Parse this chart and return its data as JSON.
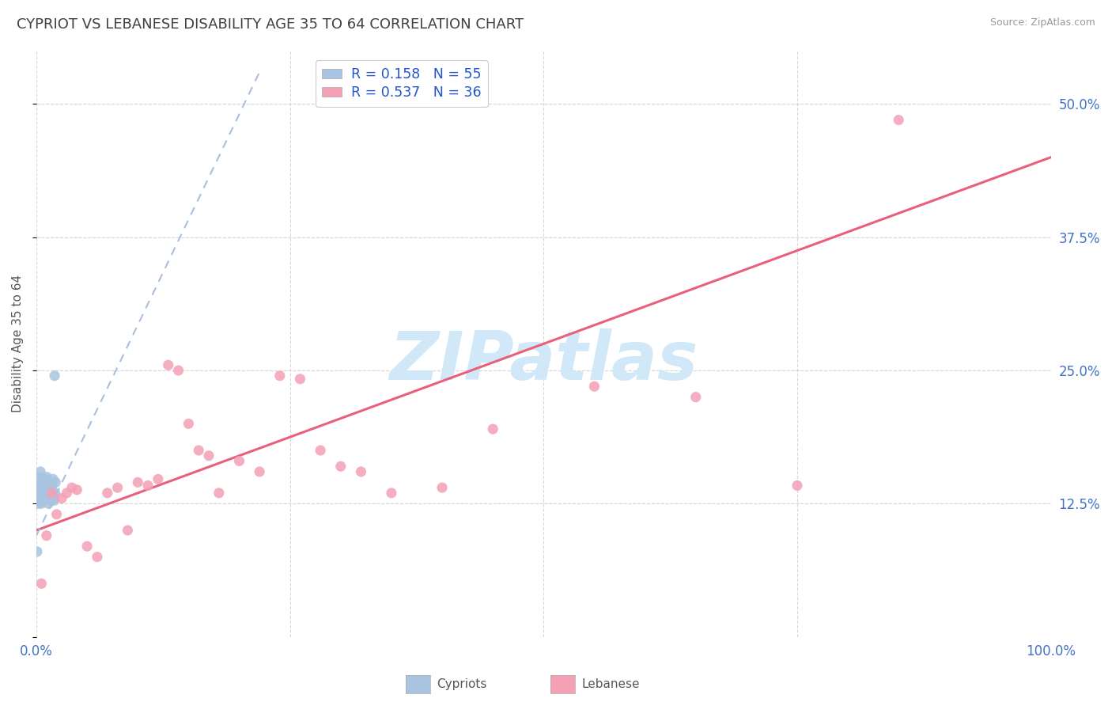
{
  "title": "CYPRIOT VS LEBANESE DISABILITY AGE 35 TO 64 CORRELATION CHART",
  "source": "Source: ZipAtlas.com",
  "ylabel": "Disability Age 35 to 64",
  "xlim": [
    0.0,
    100.0
  ],
  "ylim": [
    0.0,
    55.0
  ],
  "cypriot_color": "#a8c4e0",
  "lebanese_color": "#f4a0b5",
  "cypriot_line_color": "#a0b8d8",
  "lebanese_line_color": "#e8607a",
  "cypriot_R": 0.158,
  "cypriot_N": 55,
  "lebanese_R": 0.537,
  "lebanese_N": 36,
  "legend_color": "#2255cc",
  "tick_color": "#4472c4",
  "grid_color": "#cccccc",
  "background_color": "#ffffff",
  "title_color": "#404040",
  "title_fontsize": 13,
  "watermark": "ZIPatlas",
  "watermark_color": "#d0e8f8",
  "cypriot_x": [
    0.08,
    0.12,
    0.15,
    0.18,
    0.2,
    0.22,
    0.25,
    0.28,
    0.3,
    0.32,
    0.35,
    0.38,
    0.4,
    0.42,
    0.45,
    0.48,
    0.5,
    0.52,
    0.55,
    0.58,
    0.6,
    0.62,
    0.65,
    0.68,
    0.7,
    0.72,
    0.75,
    0.78,
    0.8,
    0.82,
    0.85,
    0.88,
    0.9,
    0.92,
    0.95,
    0.98,
    1.0,
    1.05,
    1.1,
    1.15,
    1.2,
    1.25,
    1.3,
    1.35,
    1.4,
    1.45,
    1.5,
    1.55,
    1.6,
    1.65,
    1.7,
    1.75,
    1.8,
    1.85,
    1.9
  ],
  "cypriot_y": [
    8.0,
    12.5,
    13.2,
    12.8,
    13.0,
    13.5,
    14.0,
    13.8,
    14.5,
    15.0,
    13.5,
    14.2,
    15.5,
    12.8,
    13.2,
    12.5,
    13.8,
    14.0,
    13.5,
    12.8,
    14.2,
    13.5,
    14.8,
    13.0,
    12.8,
    13.5,
    14.5,
    13.8,
    14.2,
    13.5,
    13.0,
    14.8,
    13.5,
    14.0,
    13.2,
    14.5,
    13.8,
    15.0,
    14.2,
    13.8,
    12.5,
    14.0,
    13.5,
    12.8,
    14.5,
    13.2,
    13.8,
    14.2,
    13.5,
    14.8,
    13.0,
    12.8,
    24.5,
    13.5,
    14.5
  ],
  "lebanese_x": [
    0.5,
    1.0,
    1.5,
    2.0,
    2.5,
    3.0,
    3.5,
    4.0,
    5.0,
    6.0,
    7.0,
    8.0,
    9.0,
    10.0,
    11.0,
    12.0,
    13.0,
    14.0,
    15.0,
    16.0,
    17.0,
    18.0,
    20.0,
    22.0,
    24.0,
    26.0,
    28.0,
    30.0,
    32.0,
    35.0,
    40.0,
    45.0,
    55.0,
    65.0,
    75.0,
    85.0
  ],
  "lebanese_y": [
    5.0,
    9.5,
    13.5,
    11.5,
    13.0,
    13.5,
    14.0,
    13.8,
    8.5,
    7.5,
    13.5,
    14.0,
    10.0,
    14.5,
    14.2,
    14.8,
    25.5,
    25.0,
    20.0,
    17.5,
    17.0,
    13.5,
    16.5,
    15.5,
    24.5,
    24.2,
    17.5,
    16.0,
    15.5,
    13.5,
    14.0,
    19.5,
    23.5,
    22.5,
    14.2,
    48.5
  ],
  "leb_line_x0": 0.0,
  "leb_line_y0": 10.0,
  "leb_line_x1": 100.0,
  "leb_line_y1": 45.0,
  "cyp_line_x0": 0.0,
  "cyp_line_y0": 9.5,
  "cyp_line_x1": 22.0,
  "cyp_line_y1": 53.0
}
